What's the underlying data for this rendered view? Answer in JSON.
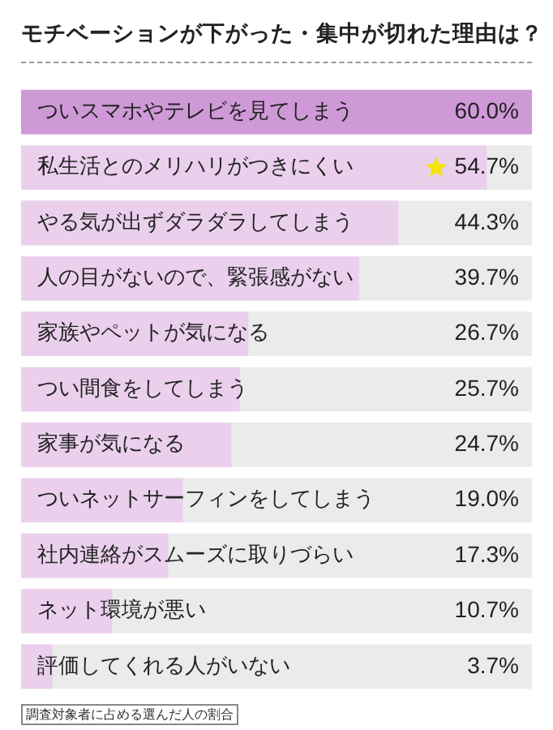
{
  "chart_data": {
    "type": "bar",
    "orientation": "horizontal",
    "title": "モチベーションが下がった・集中が切れた理由は？",
    "categories": [
      "ついスマホやテレビを見てしまう",
      "私生活とのメリハリがつきにくい",
      "やる気が出ずダラダラしてしまう",
      "人の目がないので、緊張感がない",
      "家族やペットが気になる",
      "つい間食をしてしまう",
      "家事が気になる",
      "ついネットサーフィンをしてしまう",
      "社内連絡がスムーズに取りづらい",
      "ネット環境が悪い",
      "評価してくれる人がいない"
    ],
    "values": [
      60.0,
      54.7,
      44.3,
      39.7,
      26.7,
      25.7,
      24.7,
      19.0,
      17.3,
      10.7,
      3.7
    ],
    "value_labels": [
      "60.0%",
      "54.7%",
      "44.3%",
      "39.7%",
      "26.7%",
      "25.7%",
      "24.7%",
      "19.0%",
      "17.3%",
      "10.7%",
      "3.7%"
    ],
    "colors": [
      "#cf99d7",
      "#ead0ec",
      "#ead0ec",
      "#ead0ec",
      "#ead0ec",
      "#ead0ec",
      "#ead0ec",
      "#ead0ec",
      "#ead0ec",
      "#ead0ec",
      "#ead0ec"
    ],
    "xlim": [
      0,
      60
    ],
    "tick_labels": false,
    "legend": false,
    "annotations": [
      "調査対象者に占める選んだ人の割合"
    ]
  }
}
